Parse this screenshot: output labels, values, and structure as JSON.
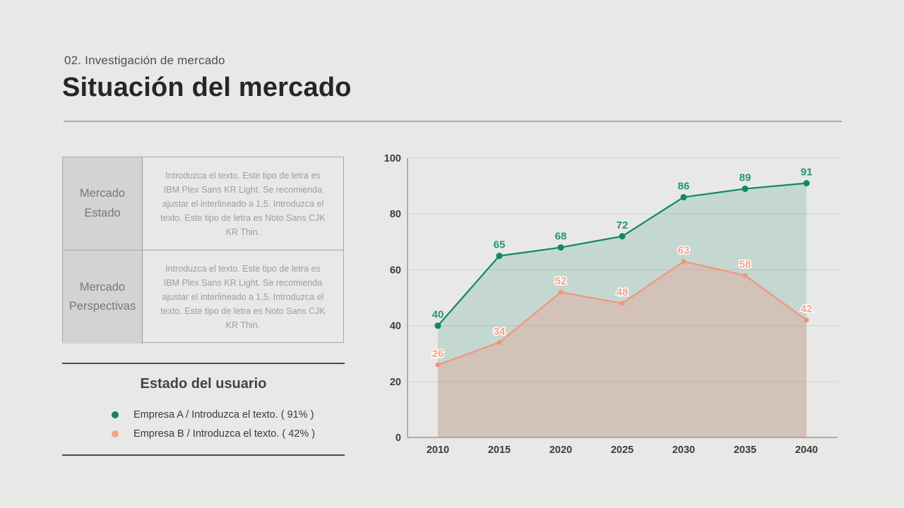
{
  "slide": {
    "eyebrow": "02. Investigación de mercado",
    "title": "Situación del mercado"
  },
  "info_table": {
    "rows": [
      {
        "header_line1": "Mercado",
        "header_line2": "Estado",
        "body": "Introduzca el texto. Este tipo de letra es IBM Plex Sans KR Light. Se recomienda ajustar el interlineado a 1,5. Introduzca el texto. Este tipo de letra es Noto Sans CJK KR Thin."
      },
      {
        "header_line1": "Mercado",
        "header_line2": "Perspectivas",
        "body": "Introduzca el texto. Este tipo de letra es IBM Plex Sans KR Light. Se recomienda ajustar el interlineado a 1,5. Introduzca el texto. Este tipo de letra es Noto Sans CJK KR Thin."
      }
    ]
  },
  "legend": {
    "title": "Estado del usuario",
    "items": [
      {
        "color": "#17805f",
        "label": "Empresa A / Introduzca el texto. ( 91% )"
      },
      {
        "color": "#f7a38a",
        "label": "Empresa B / Introduzca el texto. ( 42% )"
      }
    ]
  },
  "chart_data": {
    "type": "area",
    "title": "",
    "xlabel": "",
    "ylabel": "",
    "x": [
      2010,
      2015,
      2020,
      2025,
      2030,
      2035,
      2040
    ],
    "series": [
      {
        "name": "Empresa A",
        "values": [
          40,
          65,
          68,
          72,
          86,
          89,
          91
        ],
        "color": "#12866a",
        "fill": "rgba(18,134,106,0.17)",
        "label_color": "#2a9373",
        "label_outline": false,
        "marker_r": 4.5
      },
      {
        "name": "Empresa B",
        "values": [
          26,
          34,
          52,
          48,
          63,
          58,
          42
        ],
        "color": "#f2947e",
        "fill": "rgba(242,148,126,0.32)",
        "label_color": "#f59e88",
        "label_outline": true,
        "marker_r": 3.5
      }
    ],
    "ylim": [
      0,
      100
    ],
    "yticks": [
      0,
      20,
      40,
      60,
      80,
      100
    ],
    "grid": true,
    "legend_position": "external-left-panel",
    "colors": {
      "grid": "#d2d2cf",
      "axis": "#9a9a9a",
      "tick_label": "#3c3c3c"
    }
  }
}
